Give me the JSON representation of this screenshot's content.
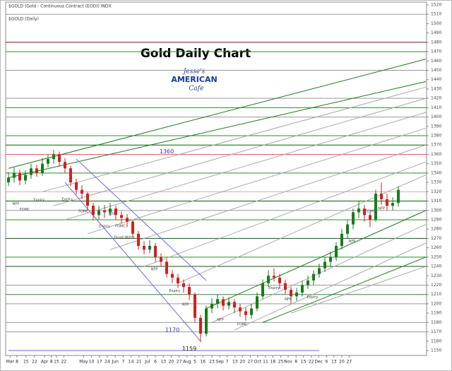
{
  "chart_data": {
    "type": "candlestick",
    "header_title": "$GOLD (Gold - Continuous Contract (EOD)) INDX",
    "header_subtitle": "$GOLD (Daily)",
    "title": "Gold Daily Chart",
    "logo": [
      "Jesse's",
      "AMERICAN",
      "Cafe"
    ],
    "xlim": [
      0,
      73.875
    ],
    "ylim": [
      1150,
      1520
    ],
    "yticks": [
      1150,
      1160,
      1170,
      1180,
      1190,
      1200,
      1210,
      1220,
      1230,
      1240,
      1250,
      1260,
      1270,
      1280,
      1290,
      1300,
      1310,
      1320,
      1330,
      1340,
      1350,
      1360,
      1370,
      1380,
      1390,
      1400,
      1410,
      1420,
      1430,
      1440,
      1450,
      1460,
      1470,
      1480,
      1490,
      1500,
      1510,
      1520
    ],
    "xticks": [
      {
        "value": 0.3,
        "label": "Mar"
      },
      {
        "value": 1.5,
        "label": "8"
      },
      {
        "value": 3.1,
        "label": "15"
      },
      {
        "value": 4.6,
        "label": "22"
      },
      {
        "value": 6.4,
        "label": "Apr"
      },
      {
        "value": 7.6,
        "label": "8"
      },
      {
        "value": 8.5,
        "label": "15"
      },
      {
        "value": 9.8,
        "label": "22"
      },
      {
        "value": 13.3,
        "label": "May"
      },
      {
        "value": 14.7,
        "label": "10"
      },
      {
        "value": 16.1,
        "label": "17"
      },
      {
        "value": 17.5,
        "label": "24"
      },
      {
        "value": 18.9,
        "label": "Jun"
      },
      {
        "value": 20.3,
        "label": "7"
      },
      {
        "value": 21.7,
        "label": "14"
      },
      {
        "value": 23.1,
        "label": "21"
      },
      {
        "value": 24.6,
        "label": "Jul"
      },
      {
        "value": 26,
        "label": "6"
      },
      {
        "value": 27.4,
        "label": "13"
      },
      {
        "value": 28.8,
        "label": "20"
      },
      {
        "value": 30.2,
        "label": "27"
      },
      {
        "value": 31.6,
        "label": "Aug"
      },
      {
        "value": 33,
        "label": "5"
      },
      {
        "value": 34.4,
        "label": "16"
      },
      {
        "value": 36,
        "label": "23"
      },
      {
        "value": 37.4,
        "label": "Sep"
      },
      {
        "value": 38.7,
        "label": "7"
      },
      {
        "value": 40.1,
        "label": "13"
      },
      {
        "value": 41.4,
        "label": "20"
      },
      {
        "value": 42.8,
        "label": "27"
      },
      {
        "value": 44.1,
        "label": "Oct"
      },
      {
        "value": 45.5,
        "label": "11"
      },
      {
        "value": 46.8,
        "label": "18"
      },
      {
        "value": 48.2,
        "label": "25"
      },
      {
        "value": 49.5,
        "label": "Nov"
      },
      {
        "value": 50.9,
        "label": "8"
      },
      {
        "value": 52.2,
        "label": "15"
      },
      {
        "value": 53.6,
        "label": "22"
      },
      {
        "value": 54.9,
        "label": "Dec"
      },
      {
        "value": 56.3,
        "label": "6"
      },
      {
        "value": 57.6,
        "label": "13"
      },
      {
        "value": 59,
        "label": "20"
      },
      {
        "value": 60.3,
        "label": "27"
      }
    ],
    "up_color": "#1a7a1a",
    "down_color": "#cc2222",
    "open": [
      1330,
      1335,
      1340,
      1332,
      1338,
      1345,
      1340,
      1350,
      1355,
      1360,
      1352,
      1345,
      1330,
      1322,
      1318,
      1305,
      1295,
      1300,
      1298,
      1302,
      1295,
      1292,
      1288,
      1275,
      1262,
      1258,
      1262,
      1250,
      1245,
      1232,
      1228,
      1222,
      1218,
      1210,
      1185,
      1168,
      1195,
      1200,
      1205,
      1198,
      1202,
      1196,
      1192,
      1188,
      1195,
      1208,
      1222,
      1230,
      1228,
      1222,
      1215,
      1208,
      1212,
      1220,
      1225,
      1232,
      1238,
      1245,
      1250,
      1262,
      1275,
      1285,
      1298,
      1302,
      1295,
      1290,
      1318,
      1312,
      1305,
      1308
    ],
    "high": [
      1341,
      1346,
      1344,
      1343,
      1350,
      1349,
      1356,
      1360,
      1365,
      1363,
      1356,
      1348,
      1334,
      1327,
      1320,
      1308,
      1305,
      1306,
      1308,
      1305,
      1299,
      1296,
      1290,
      1278,
      1267,
      1268,
      1265,
      1254,
      1248,
      1236,
      1232,
      1226,
      1222,
      1212,
      1188,
      1198,
      1206,
      1210,
      1208,
      1207,
      1205,
      1200,
      1196,
      1200,
      1212,
      1226,
      1236,
      1238,
      1232,
      1226,
      1218,
      1217,
      1225,
      1230,
      1236,
      1243,
      1250,
      1256,
      1266,
      1280,
      1290,
      1302,
      1310,
      1306,
      1298,
      1322,
      1330,
      1318,
      1314,
      1326
    ],
    "low": [
      1326,
      1330,
      1327,
      1328,
      1334,
      1336,
      1337,
      1346,
      1350,
      1347,
      1340,
      1326,
      1317,
      1312,
      1300,
      1290,
      1290,
      1292,
      1294,
      1290,
      1286,
      1282,
      1270,
      1258,
      1253,
      1254,
      1245,
      1240,
      1228,
      1222,
      1217,
      1212,
      1204,
      1180,
      1159,
      1165,
      1190,
      1195,
      1193,
      1194,
      1190,
      1186,
      1182,
      1184,
      1192,
      1205,
      1218,
      1224,
      1216,
      1210,
      1200,
      1203,
      1208,
      1216,
      1220,
      1228,
      1234,
      1240,
      1246,
      1258,
      1270,
      1280,
      1292,
      1288,
      1282,
      1288,
      1306,
      1300,
      1300,
      1304
    ],
    "close": [
      1335,
      1340,
      1332,
      1338,
      1345,
      1340,
      1350,
      1355,
      1360,
      1352,
      1345,
      1330,
      1322,
      1318,
      1305,
      1295,
      1300,
      1298,
      1302,
      1295,
      1292,
      1288,
      1275,
      1262,
      1258,
      1262,
      1250,
      1245,
      1232,
      1228,
      1222,
      1218,
      1210,
      1185,
      1168,
      1195,
      1200,
      1205,
      1198,
      1202,
      1196,
      1192,
      1188,
      1195,
      1208,
      1222,
      1230,
      1228,
      1222,
      1215,
      1208,
      1212,
      1220,
      1225,
      1232,
      1238,
      1245,
      1250,
      1262,
      1275,
      1285,
      1298,
      1302,
      1295,
      1290,
      1318,
      1312,
      1305,
      1308,
      1322
    ],
    "hlines": [
      {
        "value": 1510,
        "color": "#999999"
      },
      {
        "value": 1480,
        "color": "#7a1010"
      },
      {
        "value": 1470,
        "color": "#2e8b2e"
      },
      {
        "value": 1450,
        "color": "#999999"
      },
      {
        "value": 1420,
        "color": "#999999"
      },
      {
        "value": 1410,
        "color": "#2e8b2e"
      },
      {
        "value": 1400,
        "color": "#999999"
      },
      {
        "value": 1380,
        "color": "#2e8b2e"
      },
      {
        "value": 1370,
        "color": "#0b5a0b"
      },
      {
        "value": 1360,
        "color": "#e06060"
      },
      {
        "value": 1340,
        "color": "#2e8b2e"
      },
      {
        "value": 1320,
        "color": "#f0a0a0"
      },
      {
        "value": 1310,
        "color": "#0b5a0b"
      },
      {
        "value": 1300,
        "color": "#999999"
      },
      {
        "value": 1290,
        "color": "#2e8b2e"
      },
      {
        "value": 1270,
        "color": "#0b5a0b"
      },
      {
        "value": 1250,
        "color": "#2e8b2e"
      },
      {
        "value": 1240,
        "color": "#0b5a0b"
      },
      {
        "value": 1220,
        "color": "#999999"
      },
      {
        "value": 1210,
        "color": "#2e8b2e"
      },
      {
        "value": 1200,
        "color": "#999999"
      },
      {
        "value": 1180,
        "color": "#999999"
      },
      {
        "value": 1170,
        "color": "#999999"
      }
    ],
    "trendlines": [
      {
        "x": [
          0,
          73.875
        ],
        "y": [
          1345,
          1462
        ],
        "color": "#1a7a1a"
      },
      {
        "x": [
          0,
          73.875
        ],
        "y": [
          1335,
          1438
        ],
        "color": "#1a7a1a"
      },
      {
        "x": [
          6,
          73.875
        ],
        "y": [
          1320,
          1432
        ],
        "color": "#aaaaaa"
      },
      {
        "x": [
          8,
          73.875
        ],
        "y": [
          1305,
          1420
        ],
        "color": "#aaaaaa"
      },
      {
        "x": [
          10,
          73.875
        ],
        "y": [
          1290,
          1405
        ],
        "color": "#aaaaaa"
      },
      {
        "x": [
          14,
          73.875
        ],
        "y": [
          1275,
          1388
        ],
        "color": "#aaaaaa"
      },
      {
        "x": [
          18,
          73.875
        ],
        "y": [
          1258,
          1370
        ],
        "color": "#aaaaaa"
      },
      {
        "x": [
          24,
          73.875
        ],
        "y": [
          1240,
          1352
        ],
        "color": "#aaaaaa"
      },
      {
        "x": [
          30,
          73.875
        ],
        "y": [
          1222,
          1338
        ],
        "color": "#aaaaaa"
      },
      {
        "x": [
          35,
          73.875
        ],
        "y": [
          1195,
          1300
        ],
        "color": "#1a7a1a"
      },
      {
        "x": [
          36,
          73.875
        ],
        "y": [
          1180,
          1285
        ],
        "color": "#aaaaaa"
      },
      {
        "x": [
          40,
          73.875
        ],
        "y": [
          1172,
          1265
        ],
        "color": "#aaaaaa"
      },
      {
        "x": [
          45,
          73.875
        ],
        "y": [
          1180,
          1250
        ],
        "color": "#1a7a1a"
      },
      {
        "x": [
          50,
          73.875
        ],
        "y": [
          1190,
          1240
        ],
        "color": "#aaaaaa"
      },
      {
        "x": [
          12,
          35
        ],
        "y": [
          1355,
          1225
        ],
        "color": "#6a6ad8"
      },
      {
        "x": [
          10,
          34
        ],
        "y": [
          1330,
          1160
        ],
        "color": "#6a6ad8"
      },
      {
        "x": [
          0,
          55
        ],
        "y": [
          1150,
          1150
        ],
        "color": "#6a6ad8"
      }
    ],
    "annotations": [
      {
        "text": "1360",
        "x": 28,
        "y": 1363
      },
      {
        "text": "1170",
        "x": 29,
        "y": 1172
      },
      {
        "text": "1159",
        "x": 32,
        "y": 1152
      },
      {
        "text": "NFP",
        "x": 1.3,
        "y": 1307
      },
      {
        "text": "FOMC",
        "x": 2.9,
        "y": 1301
      },
      {
        "text": "Expiry",
        "x": 5.4,
        "y": 1311
      },
      {
        "text": "Expiry",
        "x": 10.4,
        "y": 1312
      },
      {
        "text": "FOMC",
        "x": 13.3,
        "y": 1299
      },
      {
        "text": "Expiry",
        "x": 17,
        "y": 1283
      },
      {
        "text": "NFP",
        "x": 18.3,
        "y": 1296
      },
      {
        "text": "FOMC",
        "x": 19.8,
        "y": 1283
      },
      {
        "text": "Quad Witch",
        "x": 20.5,
        "y": 1271
      },
      {
        "text": "NFP",
        "x": 25.8,
        "y": 1237
      },
      {
        "text": "Expiry",
        "x": 29.4,
        "y": 1214
      },
      {
        "text": "NFP",
        "x": 31.3,
        "y": 1199
      },
      {
        "text": "NFP",
        "x": 37.5,
        "y": 1183
      },
      {
        "text": "FOMC",
        "x": 41.4,
        "y": 1178
      },
      {
        "text": "Expiry",
        "x": 47,
        "y": 1217
      },
      {
        "text": "NFP",
        "x": 49.5,
        "y": 1205
      },
      {
        "text": "Expiry",
        "x": 53.8,
        "y": 1207
      },
      {
        "text": "NFP",
        "x": 60.8,
        "y": 1267
      },
      {
        "text": "FOMC",
        "x": 64,
        "y": 1299
      },
      {
        "text": "NFP",
        "x": 66,
        "y": 1302
      }
    ]
  }
}
